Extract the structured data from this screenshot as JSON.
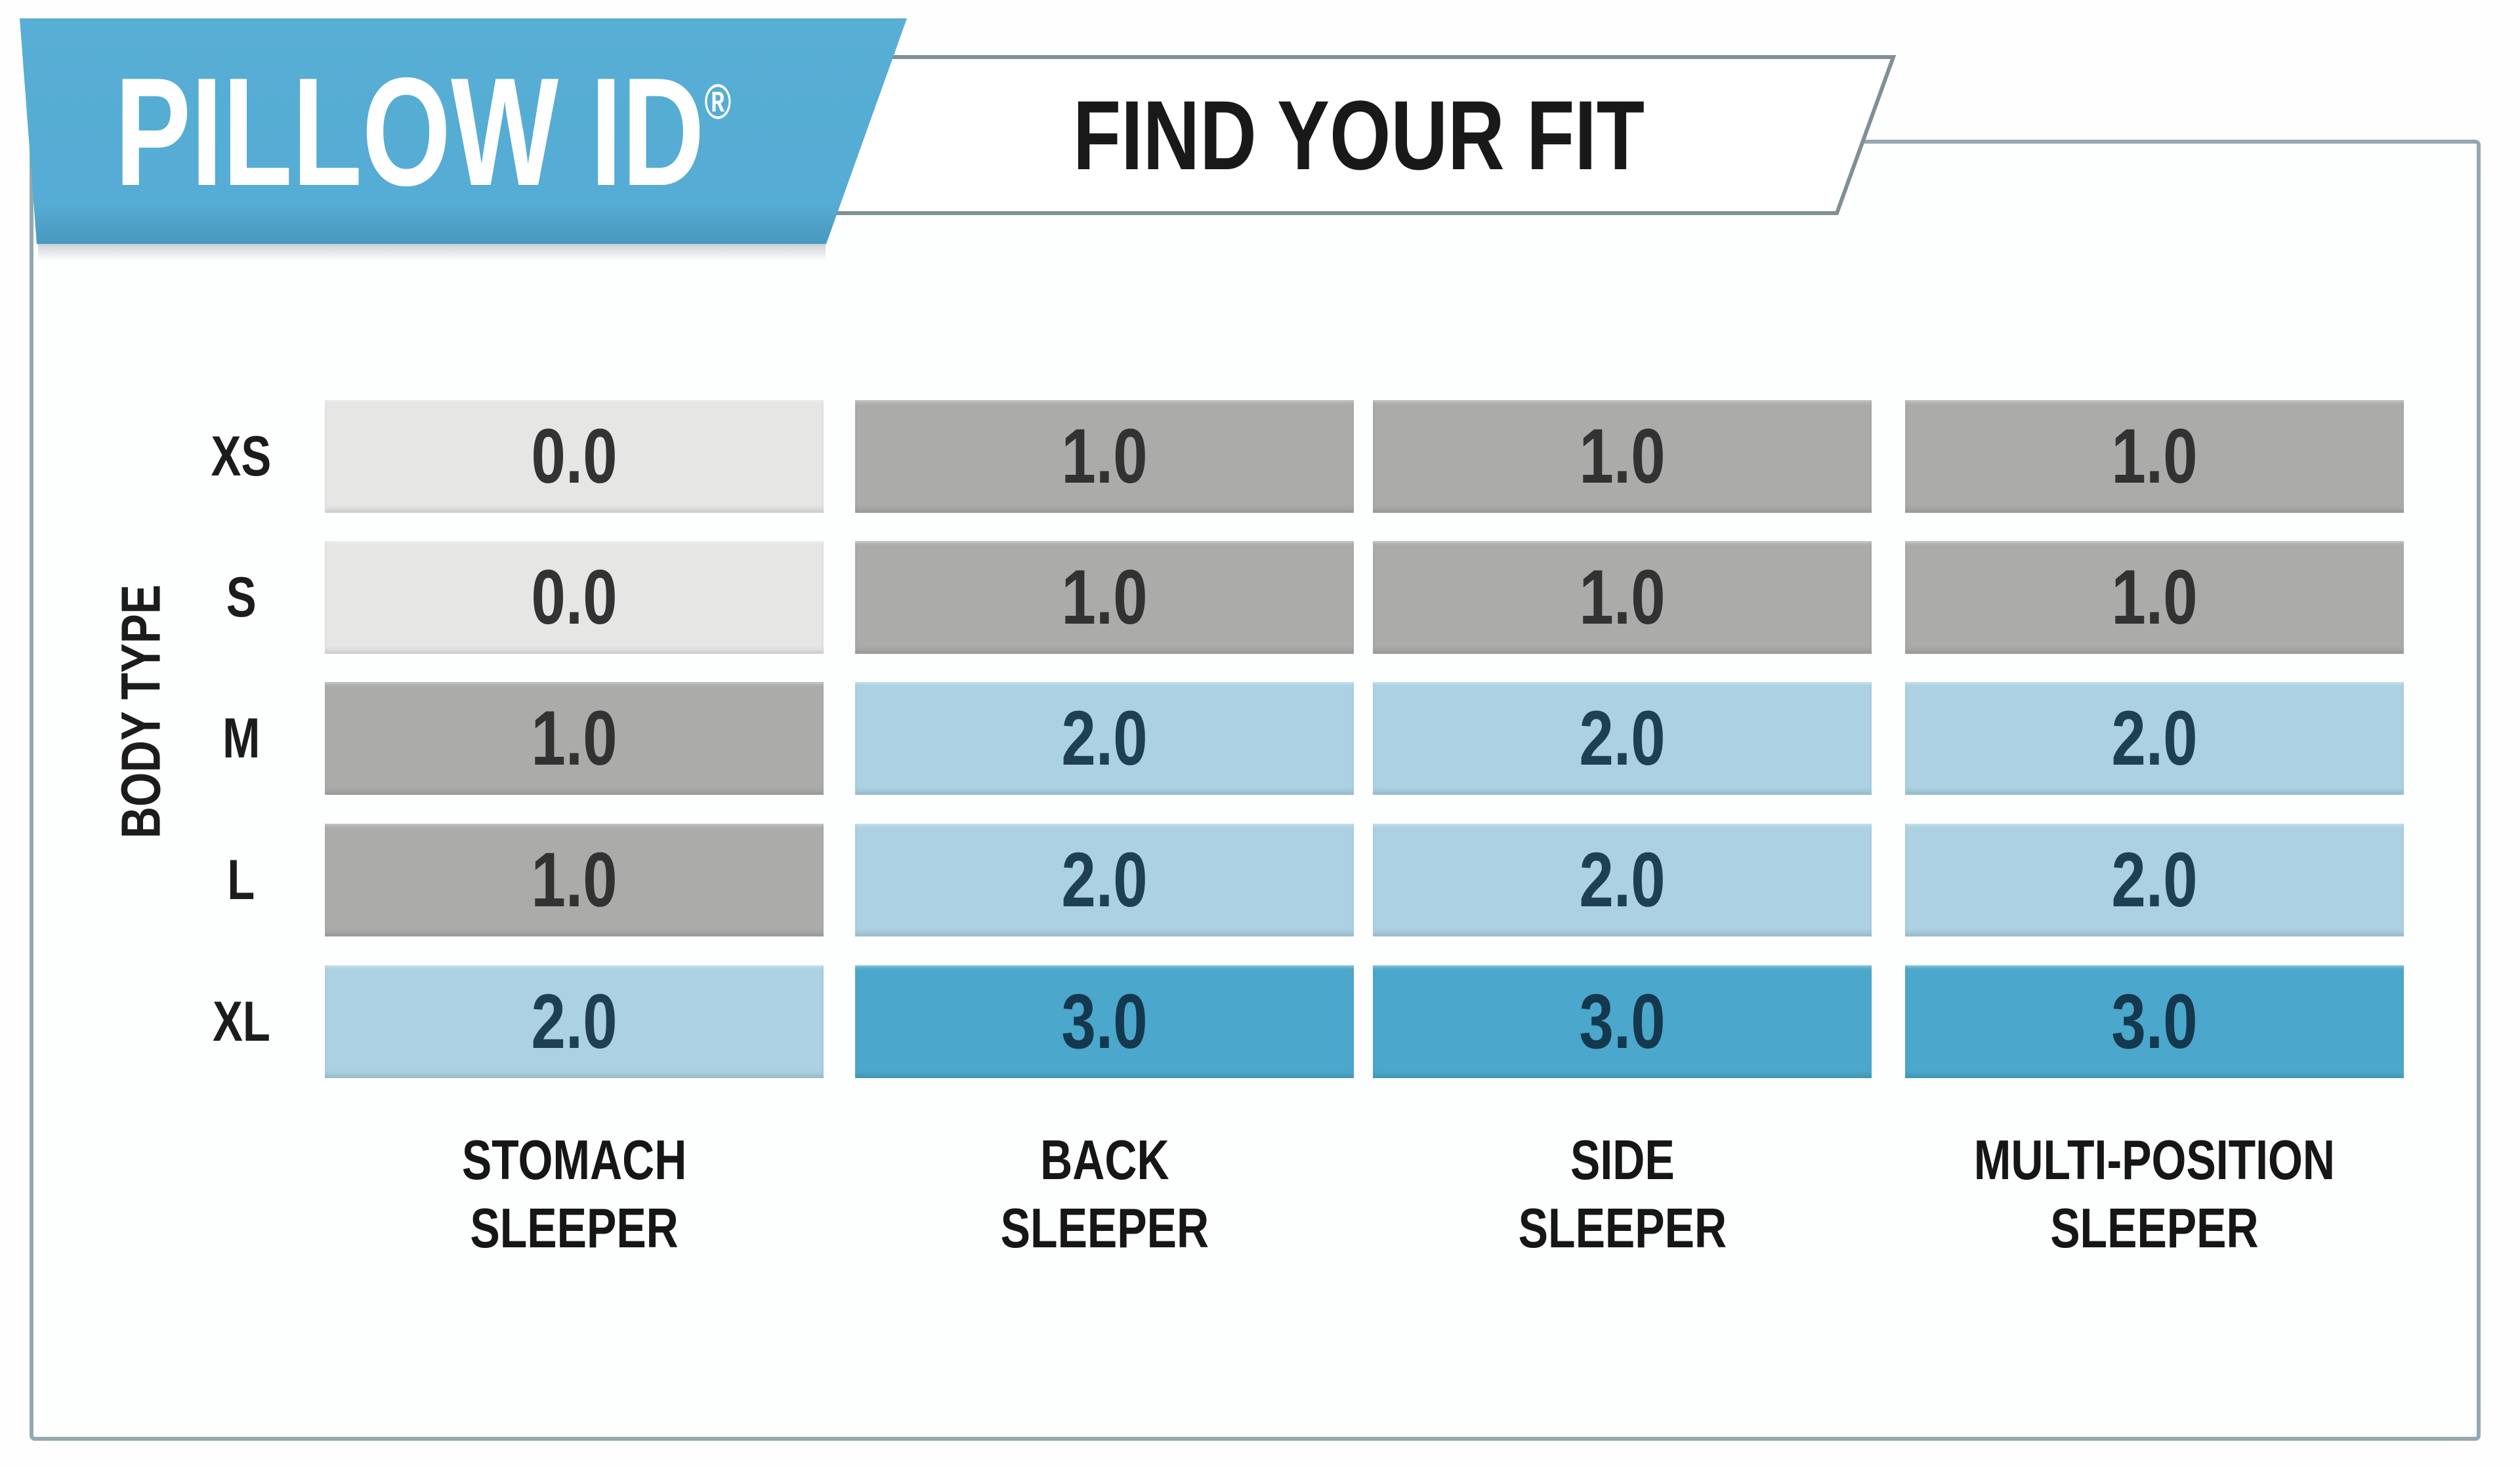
{
  "header": {
    "brand": "PILLOW ID",
    "registered_mark": "®",
    "tagline": "FIND YOUR FIT"
  },
  "chart_data": {
    "type": "heatmap",
    "title": "PILLOW ID® FIND YOUR FIT",
    "row_axis_label": "BODY TYPE",
    "rows": [
      "XS",
      "S",
      "M",
      "L",
      "XL"
    ],
    "columns": [
      "STOMACH SLEEPER",
      "BACK SLEEPER",
      "SIDE SLEEPER",
      "MULTI-POSITION SLEEPER"
    ],
    "values": [
      [
        0,
        1,
        1,
        1
      ],
      [
        0,
        1,
        1,
        1
      ],
      [
        1,
        2,
        2,
        2
      ],
      [
        1,
        2,
        2,
        2
      ],
      [
        2,
        3,
        3,
        3
      ]
    ],
    "value_format": "one_decimal",
    "value_scale": {
      "0": {
        "bg": "#e6e6e5",
        "text": "#333333"
      },
      "1": {
        "bg": "#ababa9",
        "text": "#323232"
      },
      "2": {
        "bg": "#abd1e3",
        "text": "#1f4054"
      },
      "3": {
        "bg": "#4ba7cb",
        "text": "#14384e"
      }
    },
    "legend_position": "none",
    "grid": false
  },
  "colors": {
    "banner_blue": "#55acd4",
    "banner_blue_dark": "#4a98bd",
    "card_border": "#94a8af",
    "panel_border": "#7f9097",
    "page_bg": "#fefefe",
    "text_dark": "#191919"
  }
}
